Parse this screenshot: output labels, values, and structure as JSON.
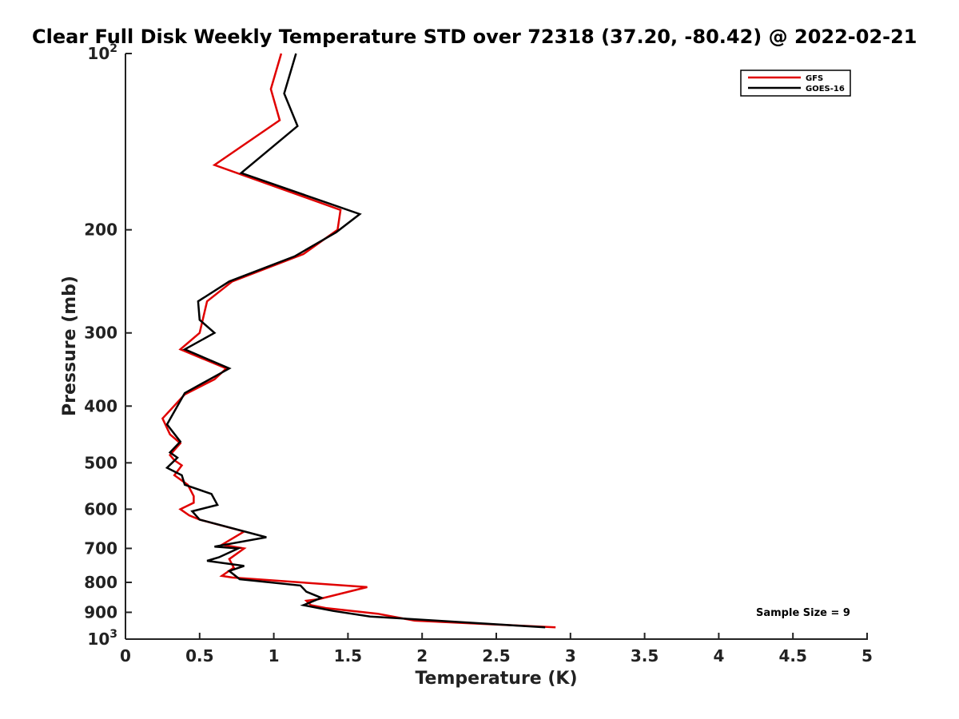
{
  "chart_data": {
    "type": "line",
    "title": "Clear Full Disk Weekly Temperature STD over 72318 (37.20, -80.42) @ 2022-02-21",
    "xlabel": "Temperature (K)",
    "ylabel": "Pressure (mb)",
    "xlim": [
      0,
      5
    ],
    "ylim": [
      100,
      1000
    ],
    "y_scale": "log",
    "y_reversed": true,
    "x_ticks": [
      0,
      0.5,
      1,
      1.5,
      2,
      2.5,
      3,
      3.5,
      4,
      4.5,
      5
    ],
    "x_tick_labels": [
      "0",
      "0.5",
      "1",
      "1.5",
      "2",
      "2.5",
      "3",
      "3.5",
      "4",
      "4.5",
      "5"
    ],
    "y_ticks": [
      100,
      200,
      300,
      400,
      500,
      600,
      700,
      800,
      900,
      1000
    ],
    "y_tick_labels": [
      {
        "base": "10",
        "exp": "2"
      },
      {
        "base": "200",
        "exp": ""
      },
      {
        "base": "300",
        "exp": ""
      },
      {
        "base": "400",
        "exp": ""
      },
      {
        "base": "500",
        "exp": ""
      },
      {
        "base": "600",
        "exp": ""
      },
      {
        "base": "700",
        "exp": ""
      },
      {
        "base": "800",
        "exp": ""
      },
      {
        "base": "900",
        "exp": ""
      },
      {
        "base": "10",
        "exp": "3"
      }
    ],
    "grid": false,
    "legend_position": "top-right",
    "annotation": "Sample Size = 9",
    "series": [
      {
        "name": "GFS",
        "color": "#e00000",
        "points": [
          [
            1.05,
            100
          ],
          [
            0.98,
            115
          ],
          [
            1.04,
            130
          ],
          [
            0.6,
            155
          ],
          [
            1.45,
            185
          ],
          [
            1.43,
            200
          ],
          [
            1.2,
            220
          ],
          [
            0.72,
            245
          ],
          [
            0.55,
            265
          ],
          [
            0.5,
            300
          ],
          [
            0.37,
            320
          ],
          [
            0.68,
            345
          ],
          [
            0.6,
            360
          ],
          [
            0.4,
            382
          ],
          [
            0.25,
            420
          ],
          [
            0.3,
            447
          ],
          [
            0.37,
            463
          ],
          [
            0.3,
            485
          ],
          [
            0.33,
            495
          ],
          [
            0.38,
            505
          ],
          [
            0.33,
            525
          ],
          [
            0.42,
            545
          ],
          [
            0.46,
            570
          ],
          [
            0.46,
            585
          ],
          [
            0.37,
            600
          ],
          [
            0.43,
            615
          ],
          [
            0.5,
            625
          ],
          [
            0.8,
            655
          ],
          [
            0.65,
            690
          ],
          [
            0.8,
            700
          ],
          [
            0.7,
            730
          ],
          [
            0.73,
            755
          ],
          [
            0.65,
            780
          ],
          [
            0.72,
            785
          ],
          [
            1.63,
            815
          ],
          [
            1.3,
            855
          ],
          [
            1.22,
            860
          ],
          [
            1.25,
            875
          ],
          [
            1.35,
            885
          ],
          [
            1.7,
            905
          ],
          [
            1.95,
            930
          ],
          [
            2.9,
            955
          ]
        ]
      },
      {
        "name": "GOES-16",
        "color": "#000000",
        "points": [
          [
            1.15,
            100
          ],
          [
            1.07,
            117
          ],
          [
            1.16,
            133
          ],
          [
            0.78,
            160
          ],
          [
            1.58,
            188
          ],
          [
            1.42,
            202
          ],
          [
            1.14,
            222
          ],
          [
            0.7,
            245
          ],
          [
            0.49,
            265
          ],
          [
            0.5,
            285
          ],
          [
            0.6,
            300
          ],
          [
            0.4,
            320
          ],
          [
            0.7,
            345
          ],
          [
            0.4,
            380
          ],
          [
            0.28,
            430
          ],
          [
            0.37,
            460
          ],
          [
            0.3,
            480
          ],
          [
            0.35,
            490
          ],
          [
            0.28,
            510
          ],
          [
            0.38,
            525
          ],
          [
            0.4,
            545
          ],
          [
            0.58,
            565
          ],
          [
            0.62,
            590
          ],
          [
            0.45,
            605
          ],
          [
            0.5,
            625
          ],
          [
            0.95,
            670
          ],
          [
            0.6,
            695
          ],
          [
            0.76,
            700
          ],
          [
            0.63,
            725
          ],
          [
            0.55,
            735
          ],
          [
            0.8,
            750
          ],
          [
            0.7,
            765
          ],
          [
            0.77,
            790
          ],
          [
            1.18,
            810
          ],
          [
            1.22,
            830
          ],
          [
            1.32,
            850
          ],
          [
            1.2,
            875
          ],
          [
            1.4,
            895
          ],
          [
            1.65,
            915
          ],
          [
            2.83,
            955
          ]
        ]
      }
    ]
  }
}
